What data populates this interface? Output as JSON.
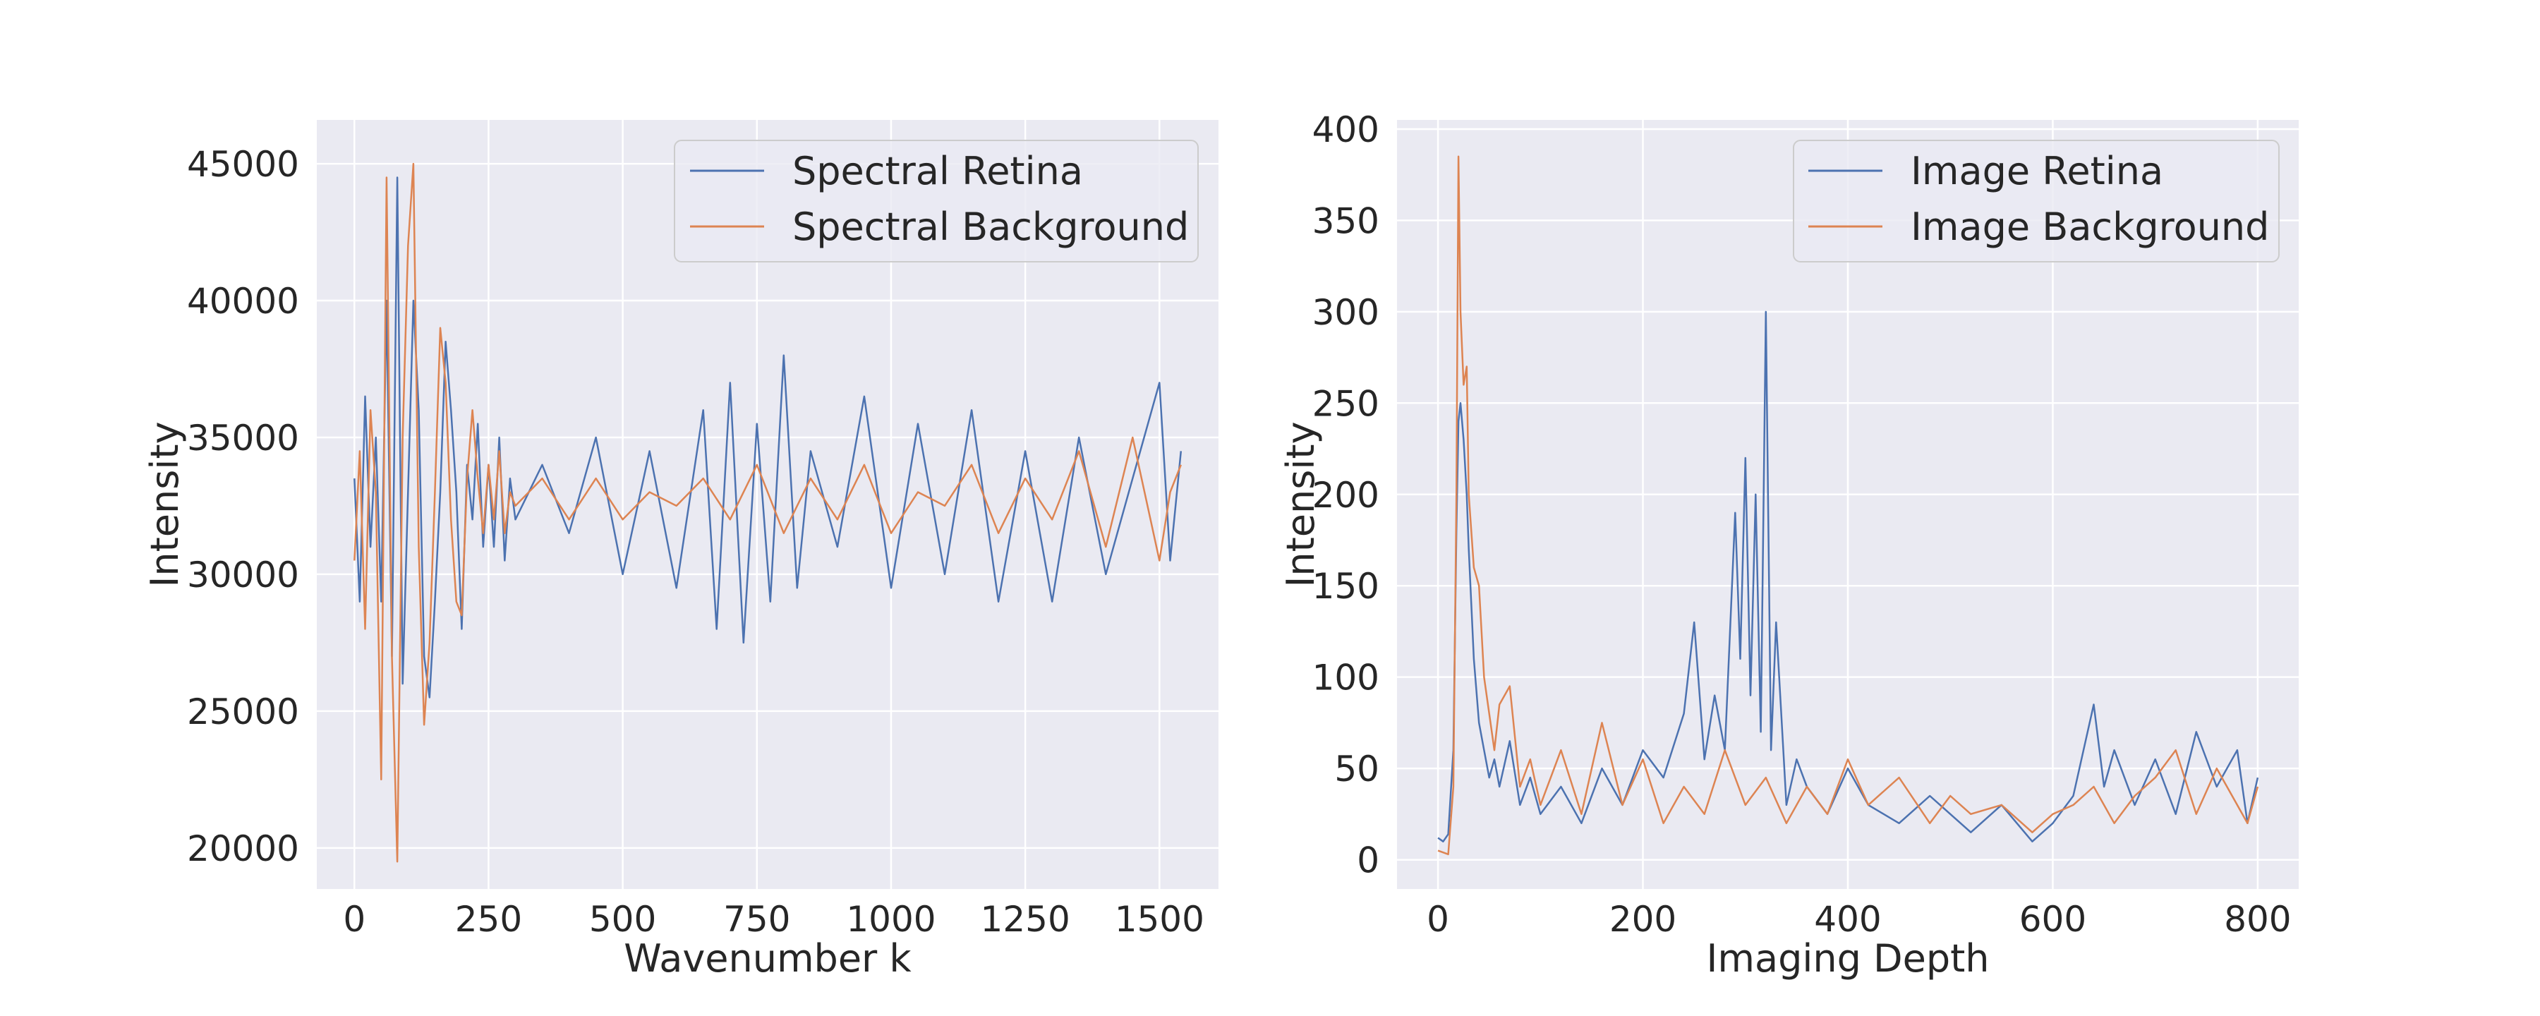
{
  "chart_data": [
    {
      "type": "line",
      "title": "",
      "xlabel": "Wavenumber k",
      "ylabel": "Intensity",
      "xlim": [
        -70,
        1610
      ],
      "ylim": [
        18500,
        46600
      ],
      "xticks": [
        0,
        250,
        500,
        750,
        1000,
        1250,
        1500
      ],
      "yticks": [
        20000,
        25000,
        30000,
        35000,
        40000,
        45000
      ],
      "grid": true,
      "legend_position": "upper right",
      "colors": {
        "background": "#eaeaf2",
        "grid": "#ffffff",
        "series": [
          "#4c72b0",
          "#dd8452"
        ]
      },
      "series": [
        {
          "name": "Spectral Retina",
          "color": "#4c72b0",
          "x": [
            0,
            10,
            20,
            30,
            40,
            50,
            60,
            70,
            80,
            90,
            100,
            110,
            120,
            130,
            140,
            150,
            160,
            170,
            180,
            190,
            200,
            210,
            220,
            230,
            240,
            250,
            260,
            270,
            280,
            290,
            300,
            350,
            400,
            450,
            500,
            550,
            600,
            650,
            675,
            700,
            725,
            750,
            775,
            800,
            825,
            850,
            900,
            950,
            1000,
            1050,
            1100,
            1150,
            1200,
            1250,
            1300,
            1350,
            1400,
            1450,
            1500,
            1520,
            1540
          ],
          "y": [
            33500,
            29000,
            36500,
            31000,
            35000,
            29000,
            40000,
            27000,
            44500,
            26000,
            33000,
            40000,
            36000,
            27000,
            25500,
            29000,
            33000,
            38500,
            36000,
            33000,
            28000,
            34000,
            32000,
            35500,
            31000,
            34000,
            31000,
            35000,
            30500,
            33500,
            32000,
            34000,
            31500,
            35000,
            30000,
            34500,
            29500,
            36000,
            28000,
            37000,
            27500,
            35500,
            29000,
            38000,
            29500,
            34500,
            31000,
            36500,
            29500,
            35500,
            30000,
            36000,
            29000,
            34500,
            29000,
            35000,
            30000,
            33500,
            37000,
            30500,
            34500
          ]
        },
        {
          "name": "Spectral Background",
          "color": "#dd8452",
          "x": [
            0,
            10,
            20,
            30,
            40,
            50,
            60,
            70,
            80,
            90,
            100,
            110,
            120,
            130,
            140,
            150,
            160,
            170,
            180,
            190,
            200,
            210,
            220,
            230,
            240,
            250,
            260,
            270,
            280,
            290,
            300,
            350,
            400,
            450,
            500,
            550,
            600,
            650,
            700,
            750,
            800,
            850,
            900,
            950,
            1000,
            1050,
            1100,
            1150,
            1200,
            1250,
            1300,
            1350,
            1400,
            1450,
            1500,
            1520,
            1540
          ],
          "y": [
            30500,
            34500,
            28000,
            36000,
            33000,
            22500,
            44500,
            27000,
            19500,
            35000,
            42000,
            45000,
            31000,
            24500,
            27500,
            33000,
            39000,
            37000,
            32000,
            29000,
            28500,
            33500,
            36000,
            33500,
            31500,
            34000,
            32000,
            34500,
            31500,
            33000,
            32500,
            33500,
            32000,
            33500,
            32000,
            33000,
            32500,
            33500,
            32000,
            34000,
            31500,
            33500,
            32000,
            34000,
            31500,
            33000,
            32500,
            34000,
            31500,
            33500,
            32000,
            34500,
            31000,
            35000,
            30500,
            33000,
            34000
          ]
        }
      ]
    },
    {
      "type": "line",
      "title": "",
      "xlabel": "Imaging Depth",
      "ylabel": "Intensity",
      "xlim": [
        -40,
        840
      ],
      "ylim": [
        -16,
        405
      ],
      "xticks": [
        0,
        200,
        400,
        600,
        800
      ],
      "yticks": [
        0,
        50,
        100,
        150,
        200,
        250,
        300,
        350,
        400
      ],
      "grid": true,
      "legend_position": "upper right",
      "colors": {
        "background": "#eaeaf2",
        "grid": "#ffffff",
        "series": [
          "#4c72b0",
          "#dd8452"
        ]
      },
      "series": [
        {
          "name": "Image Retina",
          "color": "#4c72b0",
          "x": [
            0,
            5,
            10,
            15,
            18,
            20,
            22,
            25,
            28,
            30,
            35,
            40,
            45,
            50,
            55,
            60,
            70,
            80,
            90,
            100,
            120,
            140,
            160,
            180,
            200,
            220,
            240,
            250,
            260,
            270,
            280,
            290,
            295,
            300,
            305,
            310,
            315,
            320,
            325,
            330,
            340,
            350,
            360,
            380,
            400,
            420,
            450,
            480,
            500,
            520,
            550,
            580,
            600,
            620,
            640,
            650,
            660,
            680,
            700,
            720,
            740,
            760,
            780,
            790,
            800
          ],
          "y": [
            12,
            10,
            14,
            60,
            180,
            240,
            250,
            230,
            200,
            170,
            110,
            75,
            60,
            45,
            55,
            40,
            65,
            30,
            45,
            25,
            40,
            20,
            50,
            30,
            60,
            45,
            80,
            130,
            55,
            90,
            60,
            190,
            110,
            220,
            90,
            200,
            70,
            300,
            60,
            130,
            30,
            55,
            40,
            25,
            50,
            30,
            20,
            35,
            25,
            15,
            30,
            10,
            20,
            35,
            85,
            40,
            60,
            30,
            55,
            25,
            70,
            40,
            60,
            20,
            45
          ]
        },
        {
          "name": "Image Background",
          "color": "#dd8452",
          "x": [
            0,
            5,
            10,
            15,
            18,
            20,
            22,
            25,
            28,
            30,
            35,
            40,
            45,
            50,
            55,
            60,
            70,
            80,
            90,
            100,
            120,
            140,
            160,
            180,
            200,
            220,
            240,
            260,
            280,
            300,
            320,
            340,
            360,
            380,
            400,
            420,
            450,
            480,
            500,
            520,
            550,
            580,
            600,
            620,
            640,
            660,
            680,
            700,
            720,
            740,
            760,
            780,
            790,
            800
          ],
          "y": [
            5,
            4,
            3,
            40,
            200,
            385,
            300,
            260,
            270,
            200,
            160,
            150,
            100,
            80,
            60,
            85,
            95,
            40,
            55,
            30,
            60,
            25,
            75,
            30,
            55,
            20,
            40,
            25,
            60,
            30,
            45,
            20,
            40,
            25,
            55,
            30,
            45,
            20,
            35,
            25,
            30,
            15,
            25,
            30,
            40,
            20,
            35,
            45,
            60,
            25,
            50,
            30,
            20,
            40
          ]
        }
      ]
    }
  ]
}
